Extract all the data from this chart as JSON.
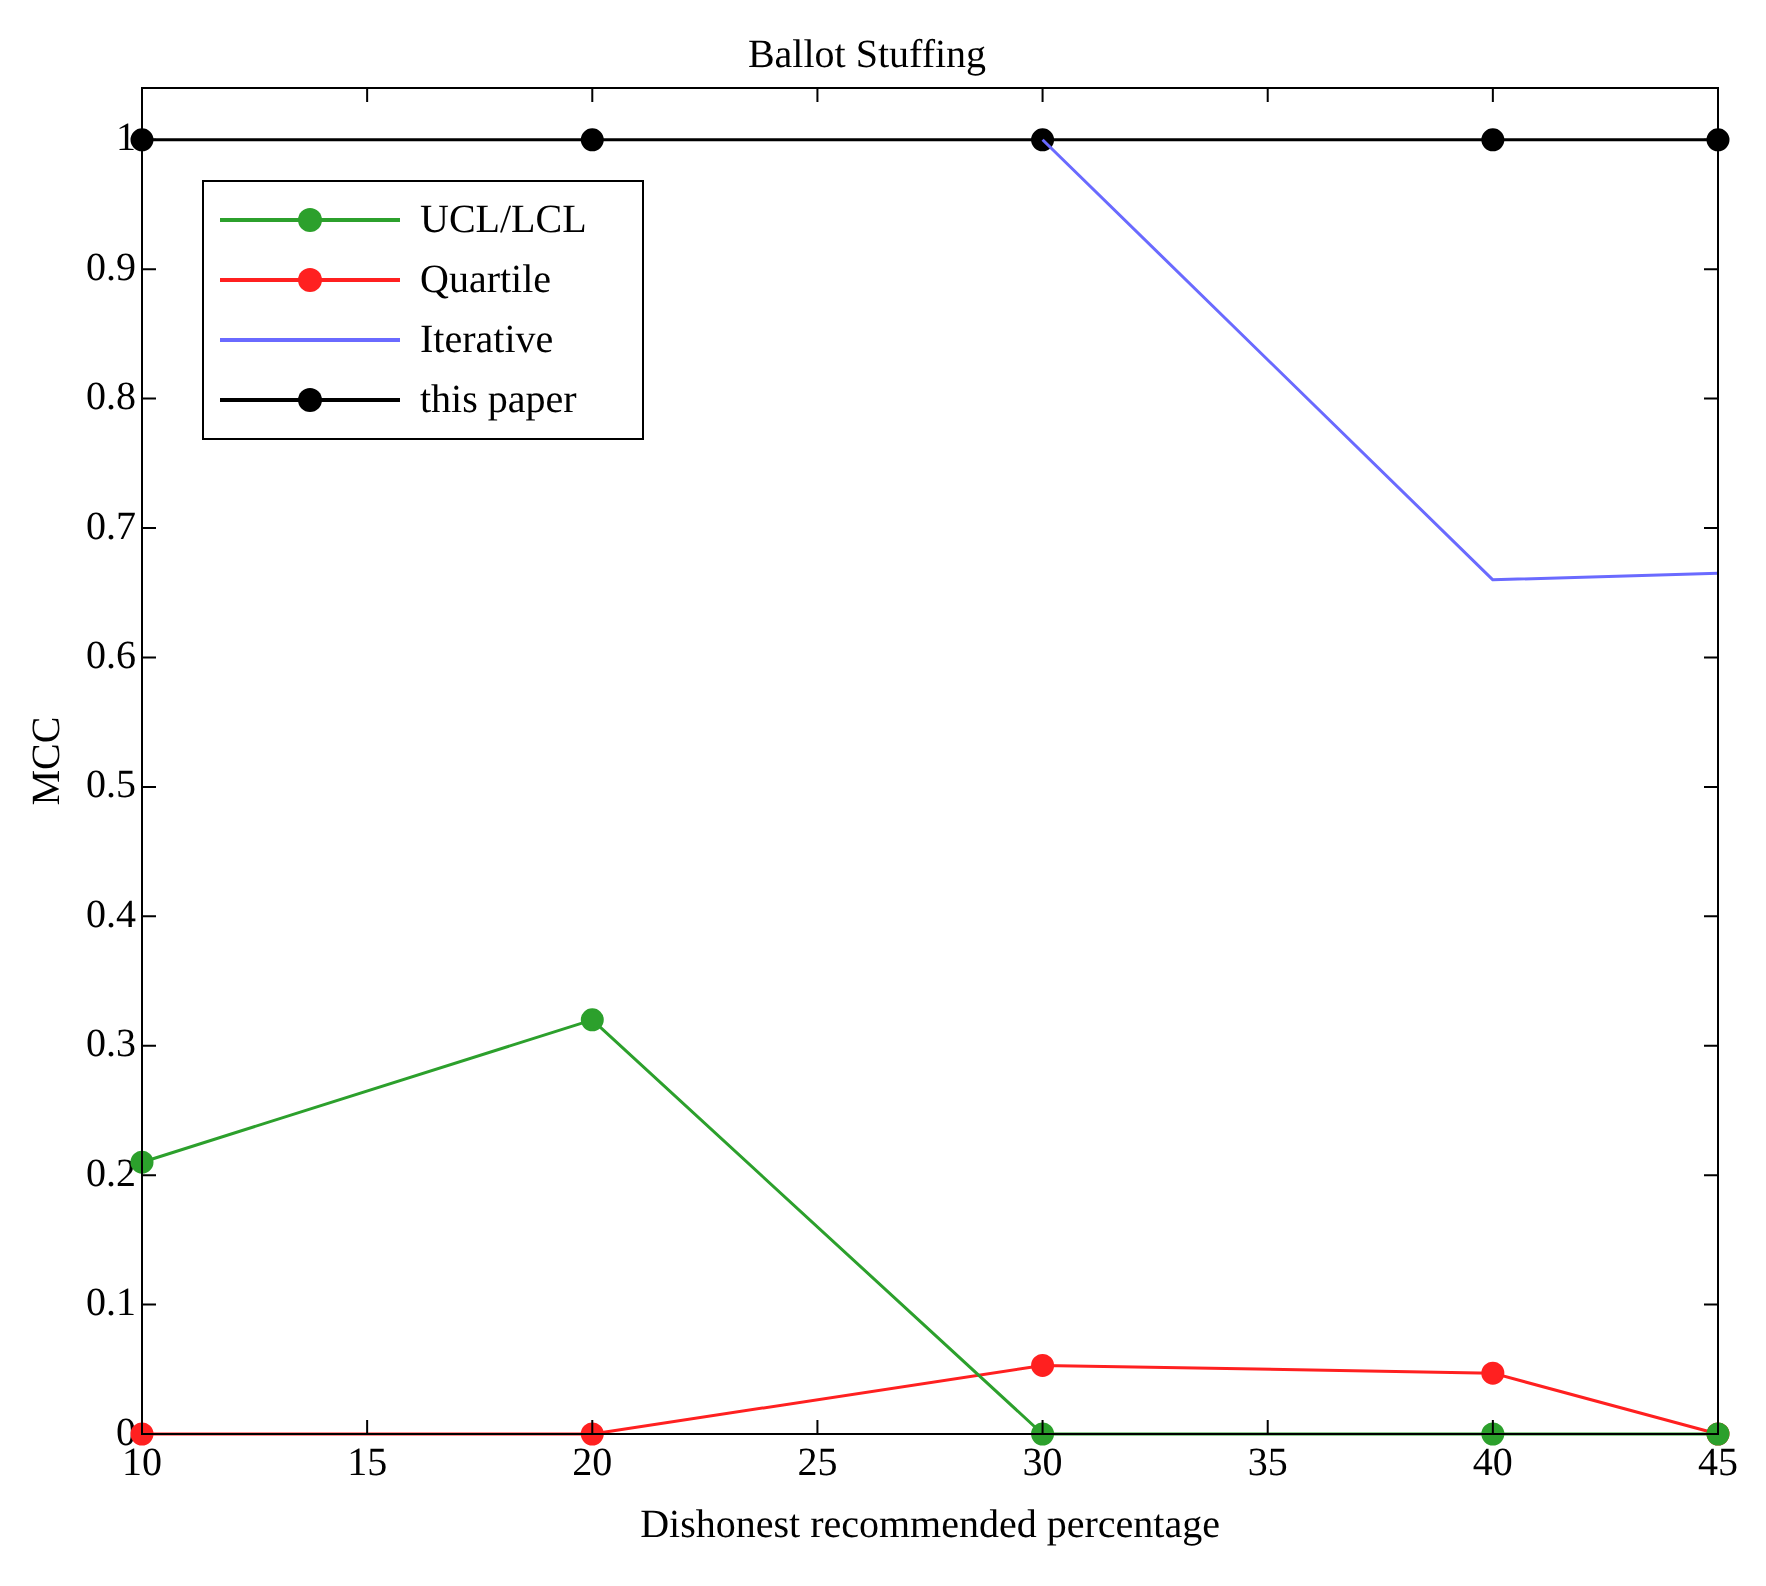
{
  "chart_data": {
    "type": "line",
    "title": "Ballot Stuffing",
    "xlabel": "Dishonest recommended percentage",
    "ylabel": "MCC",
    "x": [
      10,
      20,
      30,
      40,
      45
    ],
    "series": [
      {
        "name": "UCL/LCL",
        "color": "#2ca02c",
        "marker": "circle",
        "values": [
          0.21,
          0.32,
          0,
          0,
          0
        ]
      },
      {
        "name": "Quartile",
        "color": "#ff2020",
        "marker": "circle",
        "values": [
          0,
          0,
          0.053,
          0.047,
          0
        ]
      },
      {
        "name": "Iterative",
        "color": "#6a6aff",
        "marker": "none",
        "values": [
          null,
          null,
          1,
          0.66,
          0.665
        ]
      },
      {
        "name": "this paper",
        "color": "#000000",
        "marker": "circle",
        "values": [
          1,
          1,
          1,
          1,
          1
        ]
      }
    ],
    "xlim": [
      10,
      45
    ],
    "xticks": [
      10,
      15,
      20,
      25,
      30,
      35,
      40,
      45
    ],
    "ylim": [
      0,
      1.04
    ],
    "yticks": [
      0,
      0.1,
      0.2,
      0.3,
      0.4,
      0.5,
      0.6,
      0.7,
      0.8,
      0.9,
      1
    ],
    "grid": false,
    "legend": "top left"
  }
}
